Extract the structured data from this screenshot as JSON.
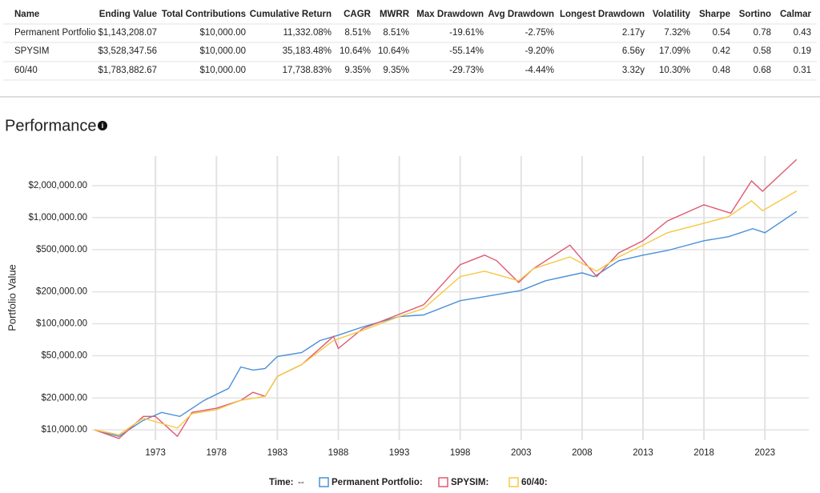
{
  "table": {
    "columns": [
      "Name",
      "Ending Value",
      "Total Contributions",
      "Cumulative Return",
      "CAGR",
      "MWRR",
      "Max Drawdown",
      "Avg Drawdown",
      "Longest Drawdown",
      "Volatility",
      "Sharpe",
      "Sortino",
      "Calmar"
    ],
    "rows": [
      [
        "Permanent Portfolio",
        "$1,143,208.07",
        "$10,000.00",
        "11,332.08%",
        "8.51%",
        "8.51%",
        "-19.61%",
        "-2.75%",
        "2.17y",
        "7.32%",
        "0.54",
        "0.78",
        "0.43"
      ],
      [
        "SPYSIM",
        "$3,528,347.56",
        "$10,000.00",
        "35,183.48%",
        "10.64%",
        "10.64%",
        "-55.14%",
        "-9.20%",
        "6.56y",
        "17.09%",
        "0.42",
        "0.58",
        "0.19"
      ],
      [
        "60/40",
        "$1,783,882.67",
        "$10,000.00",
        "17,738.83%",
        "9.35%",
        "9.35%",
        "-29.73%",
        "-4.44%",
        "3.32y",
        "10.30%",
        "0.48",
        "0.68",
        "0.31"
      ]
    ]
  },
  "section": {
    "title": "Performance"
  },
  "chart_data": {
    "type": "line",
    "y_label": "Portfolio Value",
    "log_y": true,
    "grid": true,
    "xlim": [
      1967.8,
      2026.6
    ],
    "xticks": [
      1973,
      1978,
      1983,
      1988,
      1993,
      1998,
      2003,
      2008,
      2013,
      2018,
      2023
    ],
    "ylim": [
      8000,
      3800000
    ],
    "yticks": [
      {
        "value": 10000,
        "label": "$10,000.00"
      },
      {
        "value": 20000,
        "label": "$20,000.00"
      },
      {
        "value": 50000,
        "label": "$50,000.00"
      },
      {
        "value": 100000,
        "label": "$100,000.00"
      },
      {
        "value": 200000,
        "label": "$200,000.00"
      },
      {
        "value": 500000,
        "label": "$500,000.00"
      },
      {
        "value": 1000000,
        "label": "$1,000,000.00"
      },
      {
        "value": 2000000,
        "label": "$2,000,000.00"
      }
    ],
    "legend_title": "Time:",
    "legend_time": "--",
    "series": [
      {
        "name": "Permanent Portfolio:",
        "color": "#4a90d9",
        "x": [
          1968,
          1970,
          1972,
          1973.5,
          1975,
          1977,
          1979,
          1980,
          1981,
          1982,
          1983,
          1985,
          1986.5,
          1988,
          1990,
          1993,
          1995,
          1998,
          2000,
          2003,
          2005,
          2008,
          2009,
          2011,
          2013,
          2015,
          2018,
          2020,
          2022,
          2023,
          2025.6
        ],
        "values": [
          10000,
          8700,
          12300,
          14600,
          13400,
          19000,
          24600,
          39200,
          36600,
          37900,
          49200,
          53500,
          69500,
          78000,
          93300,
          117000,
          121000,
          165000,
          180000,
          206000,
          254000,
          302000,
          278000,
          392000,
          443000,
          490000,
          605000,
          660000,
          787000,
          720000,
          1143208
        ]
      },
      {
        "name": "SPYSIM:",
        "color": "#e05a73",
        "x": [
          1968,
          1970,
          1972,
          1973,
          1974.8,
          1976,
          1978,
          1980,
          1981,
          1982,
          1983,
          1985,
          1987.6,
          1988,
          1990,
          1993,
          1995,
          1998,
          2000,
          2001,
          2002.8,
          2004,
          2007,
          2009.2,
          2011,
          2013,
          2015,
          2018,
          2020.2,
          2021.9,
          2022.8,
          2025.6
        ],
        "values": [
          10000,
          8300,
          13400,
          13400,
          8700,
          14600,
          16000,
          19000,
          22600,
          20700,
          31900,
          41300,
          76000,
          58500,
          90000,
          123000,
          151000,
          360000,
          443000,
          392000,
          245000,
          330000,
          550000,
          278000,
          465000,
          605000,
          930000,
          1320000,
          1100000,
          2220000,
          1770000,
          3528348
        ]
      },
      {
        "name": "60/40:",
        "color": "#f5c842",
        "x": [
          1968,
          1970,
          1972,
          1974.8,
          1976,
          1978,
          1980,
          1982,
          1983,
          1985,
          1987.6,
          1990,
          1993,
          1995,
          1998,
          2000,
          2002.8,
          2004,
          2007,
          2009.2,
          2011,
          2013,
          2015,
          2018,
          2020,
          2021.9,
          2022.8,
          2025.6
        ],
        "values": [
          10000,
          9000,
          12900,
          10400,
          14200,
          15500,
          19000,
          20700,
          31900,
          41300,
          69500,
          86600,
          117000,
          139000,
          278000,
          313000,
          254000,
          330000,
          426000,
          313000,
          426000,
          550000,
          720000,
          885000,
          1020000,
          1440000,
          1160000,
          1783883
        ]
      }
    ]
  }
}
